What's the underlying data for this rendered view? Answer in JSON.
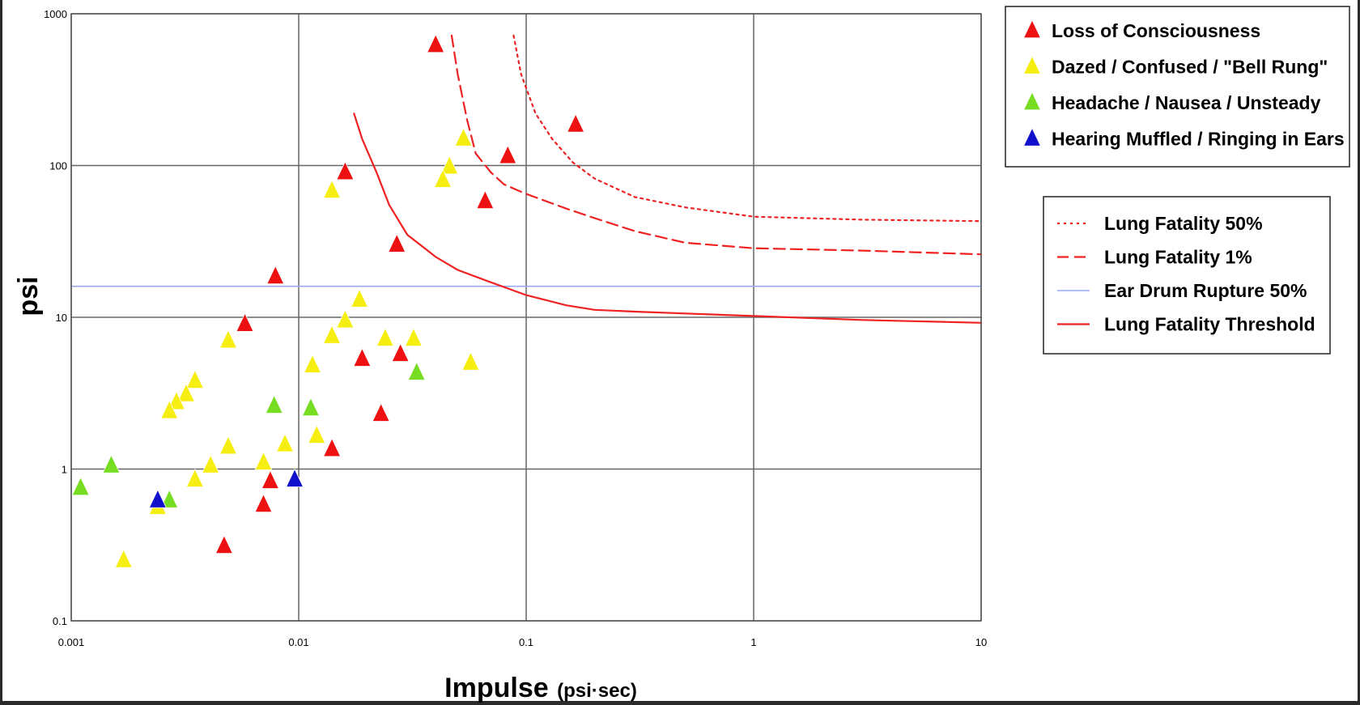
{
  "chart_data": {
    "type": "scatter",
    "title": "",
    "xlabel": "Impulse",
    "xlabel_unit": "(psi·sec)",
    "ylabel": "psi",
    "x_scale": "log",
    "y_scale": "log",
    "xlim": [
      0.001,
      10
    ],
    "ylim": [
      0.1,
      1000
    ],
    "grid": true,
    "x_ticks": [
      "0.001",
      "0.01",
      "0.1",
      "1",
      "10"
    ],
    "y_ticks": [
      "0.1",
      "1",
      "10",
      "100",
      "1000"
    ],
    "legend_placement": "right",
    "scatter_series": [
      {
        "name": "Loss of Consciousness",
        "color": "#ee1111",
        "marker": "triangle",
        "points": [
          [
            0.04,
            620
          ],
          [
            0.016,
            90
          ],
          [
            0.027,
            30
          ],
          [
            0.066,
            58
          ],
          [
            0.083,
            115
          ],
          [
            0.165,
            185
          ],
          [
            0.0079,
            18.5
          ],
          [
            0.0058,
            9
          ],
          [
            0.019,
            5.3
          ],
          [
            0.028,
            5.7
          ],
          [
            0.023,
            2.3
          ],
          [
            0.014,
            1.35
          ],
          [
            0.0075,
            0.83
          ],
          [
            0.007,
            0.58
          ],
          [
            0.0047,
            0.31
          ]
        ]
      },
      {
        "name": "Dazed / Confused / \"Bell Rung\"",
        "color": "#f7ee11",
        "marker": "triangle",
        "points": [
          [
            0.053,
            150
          ],
          [
            0.046,
            98
          ],
          [
            0.043,
            80
          ],
          [
            0.014,
            68
          ],
          [
            0.0185,
            13
          ],
          [
            0.016,
            9.5
          ],
          [
            0.014,
            7.5
          ],
          [
            0.024,
            7.2
          ],
          [
            0.032,
            7.2
          ],
          [
            0.0115,
            4.8
          ],
          [
            0.057,
            5.0
          ],
          [
            0.0049,
            7.0
          ],
          [
            0.0035,
            3.8
          ],
          [
            0.0032,
            3.1
          ],
          [
            0.0029,
            2.75
          ],
          [
            0.0027,
            2.4
          ],
          [
            0.012,
            1.65
          ],
          [
            0.0087,
            1.45
          ],
          [
            0.0049,
            1.4
          ],
          [
            0.007,
            1.1
          ],
          [
            0.0041,
            1.05
          ],
          [
            0.0035,
            0.85
          ],
          [
            0.0024,
            0.56
          ],
          [
            0.0017,
            0.25
          ]
        ]
      },
      {
        "name": "Headache / Nausea / Unsteady",
        "color": "#77dd22",
        "marker": "triangle",
        "points": [
          [
            0.0011,
            0.75
          ],
          [
            0.0015,
            1.05
          ],
          [
            0.0027,
            0.62
          ],
          [
            0.0078,
            2.6
          ],
          [
            0.0113,
            2.5
          ],
          [
            0.033,
            4.3
          ]
        ]
      },
      {
        "name": "Hearing Muffled / Ringing in Ears",
        "color": "#1111cc",
        "marker": "triangle",
        "points": [
          [
            0.0024,
            0.62
          ],
          [
            0.0096,
            0.85
          ]
        ]
      }
    ],
    "line_series": [
      {
        "name": "Lung Fatality 50%",
        "color": "#ee2222",
        "style": "dotted",
        "points": [
          [
            0.088,
            720
          ],
          [
            0.095,
            400
          ],
          [
            0.11,
            220
          ],
          [
            0.13,
            150
          ],
          [
            0.16,
            105
          ],
          [
            0.2,
            82
          ],
          [
            0.3,
            62
          ],
          [
            0.5,
            53
          ],
          [
            1,
            46
          ],
          [
            3,
            44
          ],
          [
            10,
            43
          ]
        ]
      },
      {
        "name": "Lung Fatality 1%",
        "color": "#ee2222",
        "style": "dashed",
        "points": [
          [
            0.047,
            720
          ],
          [
            0.05,
            400
          ],
          [
            0.055,
            200
          ],
          [
            0.06,
            120
          ],
          [
            0.07,
            90
          ],
          [
            0.08,
            75
          ],
          [
            0.1,
            65
          ],
          [
            0.15,
            52
          ],
          [
            0.2,
            45
          ],
          [
            0.3,
            37
          ],
          [
            0.5,
            31
          ],
          [
            1,
            28.5
          ],
          [
            3,
            27.5
          ],
          [
            10,
            26
          ]
        ]
      },
      {
        "name": "Ear Drum Rupture 50%",
        "color": "#99aaee",
        "style": "solid-thin",
        "points": [
          [
            0.001,
            16
          ],
          [
            10,
            16
          ]
        ]
      },
      {
        "name": "Lung Fatality Threshold",
        "color": "#ee2222",
        "style": "solid",
        "points": [
          [
            0.0175,
            220
          ],
          [
            0.019,
            150
          ],
          [
            0.022,
            90
          ],
          [
            0.025,
            55
          ],
          [
            0.03,
            35
          ],
          [
            0.04,
            25
          ],
          [
            0.05,
            20.5
          ],
          [
            0.07,
            17
          ],
          [
            0.1,
            14
          ],
          [
            0.15,
            12
          ],
          [
            0.2,
            11.2
          ],
          [
            0.3,
            10.9
          ],
          [
            0.5,
            10.6
          ],
          [
            1,
            10.2
          ],
          [
            3,
            9.6
          ],
          [
            10,
            9.2
          ]
        ]
      }
    ]
  }
}
